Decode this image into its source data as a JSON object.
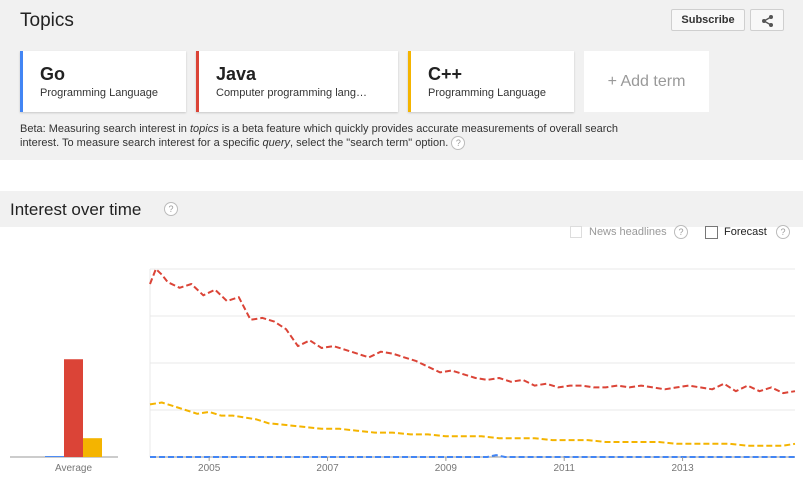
{
  "topics": {
    "title": "Topics",
    "subscribe_label": "Subscribe",
    "share_icon": "share-icon",
    "terms": [
      {
        "name": "Go",
        "category": "Programming Language",
        "color": "#4285f4"
      },
      {
        "name": "Java",
        "category": "Computer programming lang…",
        "color": "#db4437"
      },
      {
        "name": "C++",
        "category": "Programming Language",
        "color": "#f4b400"
      }
    ],
    "add_term_label": "+ Add term",
    "beta_pre": "Beta: Measuring search interest in ",
    "beta_em1": "topics",
    "beta_mid": " is a beta feature which quickly provides accurate measurements of overall search interest. To measure search interest for a specific ",
    "beta_em2": "query",
    "beta_post": ", select the \"search term\" option.",
    "help_glyph": "?"
  },
  "interest": {
    "title": "Interest over time",
    "news_label": "News headlines",
    "forecast_label": "Forecast"
  },
  "chart_data": {
    "type": "line",
    "x_ticks": [
      "2005",
      "2007",
      "2009",
      "2011",
      "2013"
    ],
    "x_tick_years": [
      2005,
      2007,
      2009,
      2011,
      2013
    ],
    "x_range": [
      2004.0,
      2014.9
    ],
    "ylim": [
      0,
      100
    ],
    "grid": true,
    "average": {
      "label": "Average",
      "values": [
        0.5,
        52,
        10
      ]
    },
    "series": [
      {
        "name": "Go",
        "color": "#4285f4",
        "x": [
          2004.0,
          2009.7,
          2009.85,
          2010.0,
          2014.9
        ],
        "values": [
          0,
          0,
          1,
          0,
          0
        ]
      },
      {
        "name": "Java",
        "color": "#db4437",
        "x": [
          2004.0,
          2004.1,
          2004.2,
          2004.3,
          2004.5,
          2004.7,
          2004.9,
          2005.1,
          2005.3,
          2005.5,
          2005.7,
          2005.9,
          2006.1,
          2006.3,
          2006.5,
          2006.7,
          2006.9,
          2007.1,
          2007.3,
          2007.5,
          2007.7,
          2007.9,
          2008.1,
          2008.3,
          2008.5,
          2008.7,
          2008.9,
          2009.1,
          2009.3,
          2009.5,
          2009.7,
          2009.9,
          2010.1,
          2010.3,
          2010.5,
          2010.7,
          2010.9,
          2011.1,
          2011.3,
          2011.5,
          2011.7,
          2011.9,
          2012.1,
          2012.3,
          2012.5,
          2012.7,
          2012.9,
          2013.1,
          2013.3,
          2013.5,
          2013.7,
          2013.9,
          2014.1,
          2014.3,
          2014.5,
          2014.7,
          2014.9
        ],
        "values": [
          92,
          100,
          97,
          93,
          90,
          92,
          86,
          89,
          83,
          85,
          73,
          74,
          72,
          68,
          59,
          62,
          58,
          59,
          57,
          55,
          53,
          56,
          55,
          53,
          51,
          48,
          45,
          46,
          44,
          42,
          41,
          42,
          40,
          41,
          38,
          39,
          37,
          38,
          38,
          37,
          37,
          38,
          37,
          38,
          37,
          36,
          37,
          38,
          37,
          36,
          39,
          35,
          38,
          35,
          37,
          34,
          35
        ]
      },
      {
        "name": "C++",
        "color": "#f4b400",
        "x": [
          2004.0,
          2004.2,
          2004.4,
          2004.6,
          2004.8,
          2005.0,
          2005.2,
          2005.4,
          2005.6,
          2005.8,
          2006.0,
          2006.3,
          2006.6,
          2006.9,
          2007.2,
          2007.5,
          2007.8,
          2008.1,
          2008.4,
          2008.7,
          2009.0,
          2009.3,
          2009.6,
          2009.9,
          2010.2,
          2010.5,
          2010.8,
          2011.1,
          2011.4,
          2011.7,
          2012.0,
          2012.3,
          2012.6,
          2012.9,
          2013.2,
          2013.5,
          2013.8,
          2014.1,
          2014.4,
          2014.7,
          2014.9
        ],
        "values": [
          28,
          29,
          27,
          25,
          23,
          24,
          22,
          22,
          21,
          20,
          18,
          17,
          16,
          15,
          15,
          14,
          13,
          13,
          12,
          12,
          11,
          11,
          11,
          10,
          10,
          10,
          9,
          9,
          9,
          8,
          8,
          8,
          8,
          7,
          7,
          7,
          7,
          6,
          6,
          6,
          7
        ]
      }
    ]
  }
}
